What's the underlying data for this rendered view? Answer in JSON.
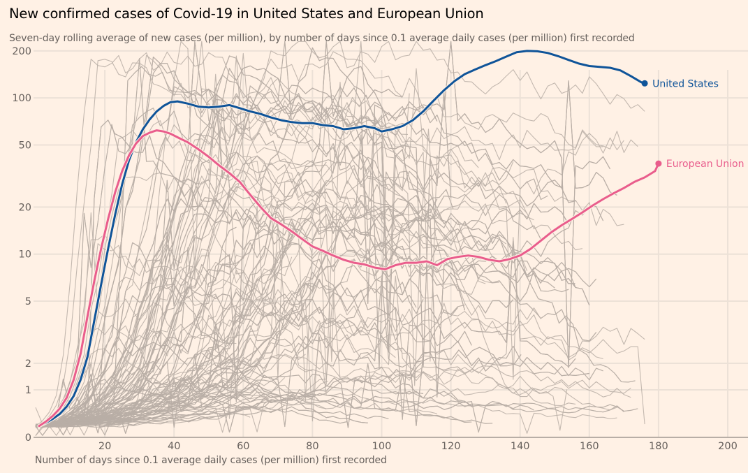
{
  "chart_data": {
    "type": "line",
    "title": "New confirmed cases of Covid-19 in United States and European Union",
    "subtitle": "Seven-day rolling average of new cases (per million), by number of days since 0.1 average daily cases (per million) first recorded",
    "xlabel": "Number of days since 0.1 average daily cases (per million) first recorded",
    "ylabel": "",
    "y_scale": "symlog",
    "xlim": [
      0,
      205
    ],
    "ylim": [
      0,
      210
    ],
    "x_ticks": [
      20,
      40,
      60,
      80,
      100,
      120,
      140,
      160,
      180,
      200
    ],
    "x_tick_labels": [
      "20",
      "40",
      "60",
      "80",
      "100",
      "120",
      "140",
      "160",
      "180",
      "200"
    ],
    "y_ticks": [
      0,
      1,
      2,
      5,
      10,
      20,
      50,
      100,
      200
    ],
    "y_tick_labels": [
      "0",
      "1",
      "2",
      "5",
      "10",
      "20",
      "50",
      "100",
      "200"
    ],
    "grid": true,
    "legend": "inline labels at line ends (right)",
    "background_series": {
      "description": "Other countries (unlabelled, grey)",
      "color": "#b8aea6",
      "count_approx": 180
    },
    "series": [
      {
        "name": "United States",
        "color": "#0f5499",
        "x": [
          1,
          3,
          5,
          7,
          9,
          11,
          13,
          15,
          17,
          19,
          21,
          23,
          25,
          27,
          29,
          31,
          33,
          35,
          37,
          39,
          41,
          44,
          47,
          50,
          53,
          56,
          59,
          62,
          65,
          68,
          71,
          74,
          77,
          80,
          83,
          86,
          89,
          92,
          95,
          98,
          100,
          103,
          106,
          109,
          112,
          115,
          118,
          121,
          124,
          127,
          130,
          133,
          136,
          139,
          142,
          145,
          148,
          151,
          154,
          157,
          160,
          163,
          166,
          169,
          172,
          175,
          176
        ],
        "y": [
          0.1,
          0.15,
          0.22,
          0.32,
          0.5,
          0.8,
          1.3,
          2.2,
          3.8,
          6.5,
          11,
          18,
          28,
          40,
          52,
          63,
          73,
          82,
          89,
          94,
          95,
          92,
          88,
          87,
          88,
          90,
          86,
          82,
          79,
          75,
          72,
          70,
          69,
          69,
          67,
          66,
          63,
          64,
          66,
          64,
          61,
          63,
          66,
          72,
          82,
          96,
          112,
          128,
          142,
          152,
          162,
          172,
          184,
          196,
          200,
          199,
          194,
          185,
          175,
          166,
          160,
          158,
          156,
          150,
          138,
          126,
          124
        ]
      },
      {
        "name": "European Union",
        "color": "#e95d8c",
        "x": [
          1,
          3,
          5,
          7,
          9,
          11,
          13,
          15,
          17,
          19,
          21,
          23,
          25,
          27,
          29,
          31,
          33,
          35,
          37,
          39,
          41,
          44,
          47,
          50,
          53,
          56,
          59,
          62,
          65,
          68,
          71,
          74,
          77,
          80,
          83,
          86,
          89,
          92,
          95,
          98,
          101,
          104,
          107,
          110,
          113,
          116,
          119,
          122,
          125,
          128,
          131,
          134,
          137,
          140,
          143,
          146,
          149,
          152,
          155,
          158,
          161,
          164,
          167,
          170,
          173,
          176,
          179,
          180
        ],
        "y": [
          0.1,
          0.17,
          0.28,
          0.45,
          0.75,
          1.3,
          2.3,
          4,
          6.8,
          11,
          17,
          25,
          34,
          43,
          51,
          57,
          60,
          62,
          61,
          59,
          56,
          52,
          47,
          42,
          37,
          33,
          29,
          24,
          20,
          17,
          15.5,
          14,
          12.5,
          11.2,
          10.5,
          9.8,
          9.2,
          8.8,
          8.6,
          8.2,
          8.0,
          8.5,
          8.8,
          8.8,
          9.0,
          8.5,
          9.3,
          9.6,
          9.8,
          9.6,
          9.2,
          9.0,
          9.3,
          9.8,
          10.8,
          12.2,
          13.8,
          15.3,
          16.8,
          18.5,
          20.5,
          22.5,
          24.5,
          26.5,
          29,
          31,
          34,
          38
        ]
      }
    ]
  }
}
